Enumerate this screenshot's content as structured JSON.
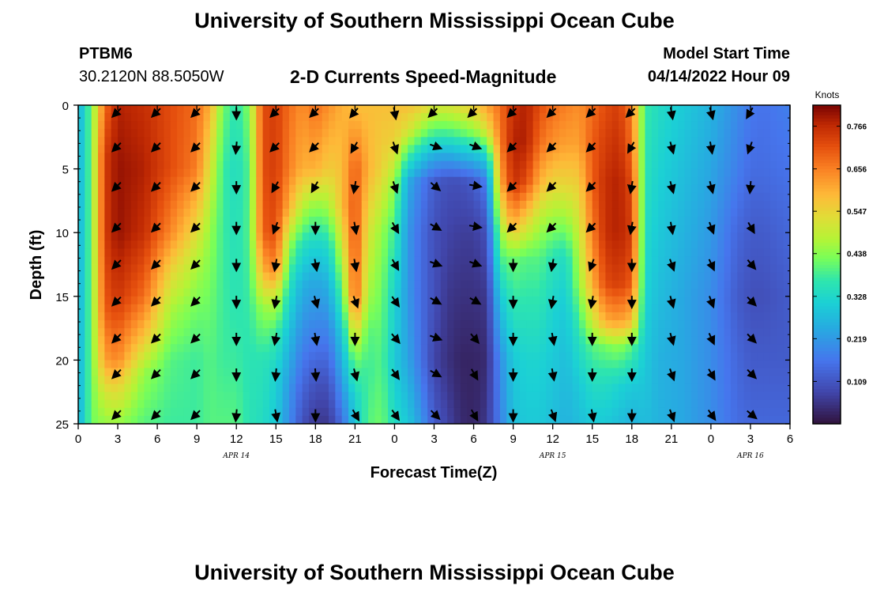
{
  "header": {
    "title": "University of Southern Mississippi Ocean Cube",
    "station": "PTBM6",
    "coords": "30.2120N  88.5050W",
    "subtitle": "2-D Currents Speed-Magnitude",
    "model_start_label": "Model Start Time",
    "model_start_value": "04/14/2022 Hour 09"
  },
  "footer": {
    "title": "University of Southern Mississippi Ocean Cube"
  },
  "chart_data": {
    "type": "heatmap",
    "title": "2-D Currents Speed-Magnitude",
    "xlabel": "Forecast Time(Z)",
    "ylabel": "Depth (ft)",
    "x_hours": [
      0,
      54
    ],
    "ylim": [
      0,
      25
    ],
    "x_tick_labels": [
      "0",
      "3",
      "6",
      "9",
      "12",
      "15",
      "18",
      "21",
      "0",
      "3",
      "6",
      "9",
      "12",
      "15",
      "18",
      "21",
      "0",
      "3",
      "6"
    ],
    "y_tick_labels": [
      "0",
      "5",
      "10",
      "15",
      "20",
      "25"
    ],
    "y_ticks": [
      0,
      5,
      10,
      15,
      20,
      25
    ],
    "date_labels": [
      {
        "text": "APR 14",
        "hour": 12
      },
      {
        "text": "APR 15",
        "hour": 36
      },
      {
        "text": "APR 16",
        "hour": 51
      }
    ],
    "colorbar": {
      "unit": "Knots",
      "range": [
        0.0,
        0.82
      ],
      "tick_values": [
        0.109,
        0.219,
        0.328,
        0.438,
        0.547,
        0.656,
        0.766
      ],
      "tick_labels": [
        "0.109",
        "0.219",
        "0.328",
        "0.438",
        "0.547",
        "0.656",
        "0.766"
      ]
    },
    "speed_profiles": [
      {
        "hour": 0,
        "depths": [
          0,
          25
        ],
        "speeds": [
          0.25,
          0.25
        ]
      },
      {
        "hour": 1,
        "depths": [
          0,
          25
        ],
        "speeds": [
          0.42,
          0.42
        ]
      },
      {
        "hour": 2,
        "depths": [
          0,
          4,
          10,
          16,
          20,
          23,
          25
        ],
        "speeds": [
          0.68,
          0.74,
          0.74,
          0.7,
          0.62,
          0.5,
          0.45
        ]
      },
      {
        "hour": 3,
        "depths": [
          0,
          5,
          10,
          15,
          20,
          22,
          25
        ],
        "speeds": [
          0.78,
          0.8,
          0.8,
          0.75,
          0.65,
          0.55,
          0.45
        ]
      },
      {
        "hour": 5,
        "depths": [
          0,
          5,
          10,
          15,
          18,
          21,
          25
        ],
        "speeds": [
          0.76,
          0.78,
          0.76,
          0.68,
          0.58,
          0.45,
          0.4
        ]
      },
      {
        "hour": 7,
        "depths": [
          0,
          5,
          10,
          13,
          16,
          20,
          25
        ],
        "speeds": [
          0.72,
          0.72,
          0.65,
          0.55,
          0.47,
          0.4,
          0.38
        ]
      },
      {
        "hour": 9,
        "depths": [
          0,
          5,
          8,
          12,
          16,
          20,
          25
        ],
        "speeds": [
          0.68,
          0.66,
          0.58,
          0.48,
          0.42,
          0.38,
          0.38
        ]
      },
      {
        "hour": 10,
        "depths": [
          0,
          5,
          10,
          15,
          20,
          25
        ],
        "speeds": [
          0.6,
          0.52,
          0.45,
          0.42,
          0.4,
          0.4
        ]
      },
      {
        "hour": 11,
        "depths": [
          0,
          5,
          10,
          15,
          20,
          25
        ],
        "speeds": [
          0.42,
          0.38,
          0.38,
          0.38,
          0.38,
          0.4
        ]
      },
      {
        "hour": 12,
        "depths": [
          0,
          5,
          10,
          15,
          20,
          25
        ],
        "speeds": [
          0.36,
          0.34,
          0.35,
          0.36,
          0.38,
          0.4
        ]
      },
      {
        "hour": 13,
        "depths": [
          0,
          5,
          10,
          15,
          20,
          25
        ],
        "speeds": [
          0.44,
          0.4,
          0.4,
          0.38,
          0.36,
          0.36
        ]
      },
      {
        "hour": 14,
        "depths": [
          0,
          5,
          10,
          13,
          16,
          20,
          25
        ],
        "speeds": [
          0.72,
          0.72,
          0.7,
          0.6,
          0.45,
          0.36,
          0.34
        ]
      },
      {
        "hour": 15,
        "depths": [
          0,
          5,
          10,
          13,
          15,
          18,
          21,
          25
        ],
        "speeds": [
          0.74,
          0.74,
          0.72,
          0.65,
          0.5,
          0.38,
          0.32,
          0.3
        ]
      },
      {
        "hour": 16,
        "depths": [
          0,
          5,
          8,
          11,
          14,
          18,
          22,
          25
        ],
        "speeds": [
          0.68,
          0.66,
          0.6,
          0.45,
          0.36,
          0.28,
          0.22,
          0.2
        ]
      },
      {
        "hour": 17,
        "depths": [
          0,
          5,
          8,
          11,
          14,
          18,
          22,
          25
        ],
        "speeds": [
          0.64,
          0.6,
          0.48,
          0.35,
          0.26,
          0.2,
          0.14,
          0.1
        ]
      },
      {
        "hour": 18,
        "depths": [
          0,
          5,
          8,
          11,
          14,
          18,
          22,
          25
        ],
        "speeds": [
          0.68,
          0.6,
          0.44,
          0.32,
          0.24,
          0.18,
          0.1,
          0.06
        ]
      },
      {
        "hour": 19,
        "depths": [
          0,
          5,
          8,
          11,
          14,
          18,
          22,
          25
        ],
        "speeds": [
          0.64,
          0.56,
          0.46,
          0.34,
          0.26,
          0.18,
          0.1,
          0.06
        ]
      },
      {
        "hour": 20,
        "depths": [
          0,
          5,
          8,
          11,
          14,
          18,
          22,
          25
        ],
        "speeds": [
          0.6,
          0.58,
          0.58,
          0.5,
          0.42,
          0.3,
          0.22,
          0.15
        ]
      },
      {
        "hour": 21,
        "depths": [
          0,
          5,
          10,
          15,
          17,
          20,
          23,
          25
        ],
        "speeds": [
          0.58,
          0.7,
          0.72,
          0.7,
          0.58,
          0.42,
          0.32,
          0.3
        ]
      },
      {
        "hour": 22,
        "depths": [
          0,
          5,
          10,
          15,
          18,
          21,
          25
        ],
        "speeds": [
          0.58,
          0.6,
          0.52,
          0.46,
          0.4,
          0.38,
          0.4
        ]
      },
      {
        "hour": 23,
        "depths": [
          0,
          5,
          10,
          15,
          20,
          25
        ],
        "speeds": [
          0.58,
          0.55,
          0.45,
          0.42,
          0.4,
          0.42
        ]
      },
      {
        "hour": 24,
        "depths": [
          0,
          3,
          6,
          10,
          15,
          20,
          25
        ],
        "speeds": [
          0.58,
          0.55,
          0.45,
          0.38,
          0.32,
          0.3,
          0.34
        ]
      },
      {
        "hour": 25,
        "depths": [
          0,
          2,
          4,
          6,
          10,
          15,
          20,
          25
        ],
        "speeds": [
          0.58,
          0.52,
          0.38,
          0.25,
          0.22,
          0.22,
          0.24,
          0.3
        ]
      },
      {
        "hour": 26,
        "depths": [
          0,
          2,
          4,
          6,
          10,
          15,
          20,
          25
        ],
        "speeds": [
          0.56,
          0.45,
          0.3,
          0.18,
          0.15,
          0.15,
          0.16,
          0.22
        ]
      },
      {
        "hour": 27,
        "depths": [
          0,
          2,
          4,
          6,
          10,
          15,
          20,
          25
        ],
        "speeds": [
          0.52,
          0.4,
          0.25,
          0.12,
          0.1,
          0.1,
          0.08,
          0.12
        ]
      },
      {
        "hour": 28,
        "depths": [
          0,
          2,
          4,
          6,
          10,
          15,
          20,
          25
        ],
        "speeds": [
          0.52,
          0.4,
          0.24,
          0.1,
          0.08,
          0.06,
          0.05,
          0.08
        ]
      },
      {
        "hour": 29,
        "depths": [
          0,
          2,
          4,
          6,
          10,
          15,
          20,
          25
        ],
        "speeds": [
          0.54,
          0.42,
          0.26,
          0.1,
          0.07,
          0.05,
          0.03,
          0.04
        ]
      },
      {
        "hour": 30,
        "depths": [
          0,
          2,
          4,
          6,
          10,
          15,
          20,
          25
        ],
        "speeds": [
          0.56,
          0.45,
          0.28,
          0.12,
          0.07,
          0.05,
          0.03,
          0.03
        ]
      },
      {
        "hour": 31,
        "depths": [
          0,
          2,
          4,
          6,
          10,
          15,
          20,
          25
        ],
        "speeds": [
          0.62,
          0.52,
          0.32,
          0.18,
          0.1,
          0.06,
          0.04,
          0.06
        ]
      },
      {
        "hour": 32,
        "depths": [
          0,
          3,
          6,
          10,
          15,
          20,
          25
        ],
        "speeds": [
          0.68,
          0.66,
          0.6,
          0.45,
          0.3,
          0.2,
          0.18
        ]
      },
      {
        "hour": 33,
        "depths": [
          0,
          3,
          6,
          9,
          12,
          16,
          20,
          25
        ],
        "speeds": [
          0.76,
          0.78,
          0.76,
          0.62,
          0.42,
          0.36,
          0.3,
          0.28
        ]
      },
      {
        "hour": 34,
        "depths": [
          0,
          3,
          6,
          9,
          12,
          16,
          20,
          25
        ],
        "speeds": [
          0.78,
          0.78,
          0.72,
          0.55,
          0.4,
          0.36,
          0.32,
          0.3
        ]
      },
      {
        "hour": 35,
        "depths": [
          0,
          3,
          6,
          9,
          12,
          16,
          20,
          25
        ],
        "speeds": [
          0.72,
          0.68,
          0.6,
          0.48,
          0.4,
          0.36,
          0.32,
          0.3
        ]
      },
      {
        "hour": 36,
        "depths": [
          0,
          3,
          6,
          9,
          12,
          16,
          20,
          25
        ],
        "speeds": [
          0.68,
          0.64,
          0.55,
          0.45,
          0.36,
          0.32,
          0.3,
          0.28
        ]
      },
      {
        "hour": 37,
        "depths": [
          0,
          3,
          6,
          9,
          12,
          16,
          20,
          25
        ],
        "speeds": [
          0.66,
          0.62,
          0.55,
          0.45,
          0.34,
          0.3,
          0.28,
          0.26
        ]
      },
      {
        "hour": 38,
        "depths": [
          0,
          3,
          6,
          10,
          14,
          18,
          22,
          25
        ],
        "speeds": [
          0.64,
          0.62,
          0.56,
          0.5,
          0.45,
          0.36,
          0.3,
          0.28
        ]
      },
      {
        "hour": 39,
        "depths": [
          0,
          3,
          6,
          10,
          14,
          17,
          19,
          22,
          25
        ],
        "speeds": [
          0.68,
          0.7,
          0.7,
          0.66,
          0.6,
          0.5,
          0.4,
          0.34,
          0.3
        ]
      },
      {
        "hour": 40,
        "depths": [
          0,
          3,
          6,
          10,
          14,
          17,
          19,
          22,
          25
        ],
        "speeds": [
          0.72,
          0.74,
          0.76,
          0.76,
          0.72,
          0.6,
          0.42,
          0.34,
          0.3
        ]
      },
      {
        "hour": 41,
        "depths": [
          0,
          3,
          6,
          10,
          14,
          17,
          19,
          22,
          25
        ],
        "speeds": [
          0.74,
          0.76,
          0.78,
          0.78,
          0.74,
          0.62,
          0.44,
          0.32,
          0.28
        ]
      },
      {
        "hour": 42,
        "depths": [
          0,
          3,
          6,
          10,
          14,
          17,
          19,
          22,
          25
        ],
        "speeds": [
          0.66,
          0.68,
          0.72,
          0.74,
          0.7,
          0.58,
          0.4,
          0.3,
          0.26
        ]
      },
      {
        "hour": 43,
        "depths": [
          0,
          5,
          10,
          15,
          20,
          25
        ],
        "speeds": [
          0.38,
          0.36,
          0.34,
          0.32,
          0.3,
          0.28
        ]
      },
      {
        "hour": 44,
        "depths": [
          0,
          5,
          10,
          15,
          20,
          25
        ],
        "speeds": [
          0.34,
          0.32,
          0.3,
          0.28,
          0.26,
          0.26
        ]
      },
      {
        "hour": 46,
        "depths": [
          0,
          5,
          10,
          15,
          20,
          25
        ],
        "speeds": [
          0.3,
          0.28,
          0.26,
          0.24,
          0.24,
          0.24
        ]
      },
      {
        "hour": 48,
        "depths": [
          0,
          5,
          10,
          15,
          20,
          25
        ],
        "speeds": [
          0.26,
          0.24,
          0.22,
          0.2,
          0.2,
          0.2
        ]
      },
      {
        "hour": 50,
        "depths": [
          0,
          5,
          10,
          15,
          20,
          25
        ],
        "speeds": [
          0.2,
          0.18,
          0.14,
          0.12,
          0.14,
          0.15
        ]
      },
      {
        "hour": 51,
        "depths": [
          0,
          5,
          10,
          15,
          20,
          25
        ],
        "speeds": [
          0.17,
          0.15,
          0.12,
          0.1,
          0.12,
          0.14
        ]
      },
      {
        "hour": 52,
        "depths": [
          0,
          5,
          10,
          15,
          20,
          25
        ],
        "speeds": [
          0.16,
          0.15,
          0.12,
          0.1,
          0.12,
          0.14
        ]
      },
      {
        "hour": 54,
        "depths": [
          0,
          5,
          10,
          15,
          20,
          25
        ],
        "speeds": [
          0.18,
          0.16,
          0.14,
          0.12,
          0.12,
          0.14
        ]
      }
    ],
    "vectors": {
      "hours": [
        3,
        6,
        9,
        12,
        15,
        18,
        21,
        24,
        27,
        30,
        33,
        36,
        39,
        42,
        45,
        48,
        51
      ],
      "depths": [
        0.5,
        3.2,
        6.3,
        9.5,
        12.4,
        15.3,
        18.2,
        21.0,
        24.2
      ],
      "angles_deg": [
        [
          -135,
          -135,
          -135,
          -135,
          -135,
          -135,
          -135,
          -135,
          -135
        ],
        [
          -135,
          -135,
          -135,
          -135,
          -135,
          -135,
          -135,
          -135,
          -135
        ],
        [
          -135,
          -135,
          -135,
          -135,
          -135,
          -135,
          -135,
          -135,
          -135
        ],
        [
          -90,
          -95,
          -90,
          -90,
          -90,
          -90,
          -90,
          -90,
          -95
        ],
        [
          -135,
          -135,
          -120,
          -110,
          -100,
          -100,
          -100,
          -95,
          -80
        ],
        [
          -135,
          -135,
          -120,
          -90,
          -80,
          -75,
          -80,
          -85,
          -90
        ],
        [
          -130,
          -120,
          -100,
          -80,
          -80,
          -70,
          -90,
          -75,
          -60
        ],
        [
          -80,
          -70,
          -70,
          -60,
          -60,
          -55,
          -50,
          -55,
          -55
        ],
        [
          -135,
          -20,
          -40,
          -30,
          -20,
          -30,
          -20,
          -30,
          -45
        ],
        [
          -135,
          -20,
          -10,
          -10,
          -20,
          -30,
          -50,
          -60,
          -60
        ],
        [
          -135,
          -135,
          -135,
          -135,
          -90,
          -90,
          -90,
          -90,
          -90
        ],
        [
          -135,
          -135,
          -135,
          -135,
          -100,
          -100,
          -80,
          -80,
          -70
        ],
        [
          -135,
          -135,
          -135,
          -135,
          -110,
          -100,
          -90,
          -90,
          -80
        ],
        [
          -135,
          -120,
          -100,
          -100,
          -90,
          -90,
          -90,
          -90,
          -90
        ],
        [
          -80,
          -75,
          -75,
          -80,
          -70,
          -75,
          -75,
          -70,
          -70
        ],
        [
          -75,
          -80,
          -75,
          -70,
          -65,
          -70,
          -65,
          -60,
          -55
        ],
        [
          -120,
          -110,
          -95,
          -60,
          -50,
          -45,
          -45,
          -45,
          -40
        ]
      ]
    }
  }
}
